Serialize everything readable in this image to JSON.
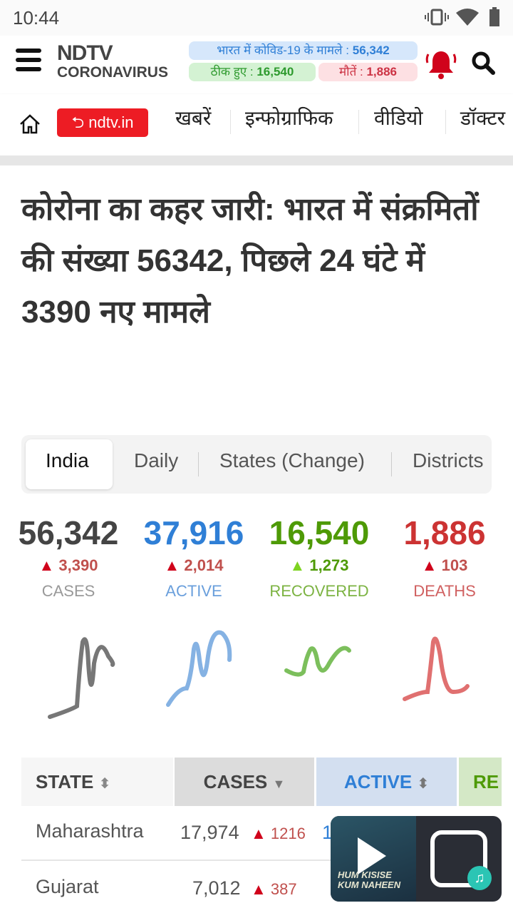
{
  "status_bar": {
    "time": "10:44"
  },
  "header": {
    "logo_top": "NDTV",
    "logo_bottom": "CORONAVIRUS",
    "cases_label": "भारत में कोविड-19 के मामले :",
    "cases_value": "56,342",
    "recovered_label": "ठीक हुए :",
    "recovered_value": "16,540",
    "deaths_label": "मौतें :",
    "deaths_value": "1,886"
  },
  "nav": {
    "back_label": "ndtv.in",
    "items": [
      "खबरें",
      "इन्फोग्राफिक",
      "वीडियो",
      "डॉक्टर"
    ]
  },
  "article": {
    "title": "कोरोना का कहर जारी: भारत में संक्रमितों की संख्या 56342, पिछले 24 घंटे में 3390 नए मामले"
  },
  "tabs": [
    {
      "label": "India",
      "active": true
    },
    {
      "label": "Daily"
    },
    {
      "label": "States (Change)"
    },
    {
      "label": "Districts"
    }
  ],
  "stats": [
    {
      "value": "56,342",
      "change": "3,390",
      "label": "CASES",
      "color": "#444444",
      "change_color": "#c0504d"
    },
    {
      "value": "37,916",
      "change": "2,014",
      "label": "ACTIVE",
      "color": "#2f7fd6",
      "change_color": "#c0504d"
    },
    {
      "value": "16,540",
      "change": "1,273",
      "label": "RECOVERED",
      "color": "#4e9a06",
      "change_color": "#4e9a06"
    },
    {
      "value": "1,886",
      "change": "103",
      "label": "DEATHS",
      "color": "#cc3333",
      "change_color": "#c0504d"
    }
  ],
  "table": {
    "headers": [
      {
        "label": "STATE",
        "sort": "both"
      },
      {
        "label": "CASES",
        "sort": "desc"
      },
      {
        "label": "ACTIVE",
        "sort": "both"
      },
      {
        "label": "RE"
      }
    ],
    "rows": [
      {
        "state": "Maharashtra",
        "cases": "17,974",
        "cases_change": "1216",
        "active": "1"
      },
      {
        "state": "Gujarat",
        "cases": "7,012",
        "cases_change": "387"
      }
    ]
  },
  "player": {
    "album_text": "HUM KISISE KUM NAHEEN"
  }
}
